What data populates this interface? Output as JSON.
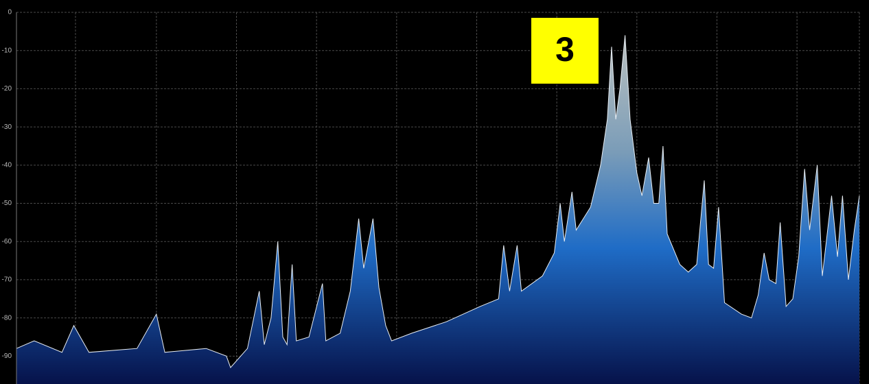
{
  "chart_data": {
    "type": "area",
    "annotation": "3",
    "x": [
      0,
      2.1,
      5.4,
      6.8,
      8.6,
      14.3,
      16.6,
      17.6,
      22.5,
      24.9,
      25.4,
      27.4,
      28.8,
      29.4,
      30.2,
      31.0,
      31.6,
      32.1,
      32.7,
      33.2,
      34.7,
      36.3,
      36.7,
      38.4,
      39.6,
      40.6,
      41.2,
      42.3,
      43.0,
      43.8,
      44.5,
      46.9,
      51.0,
      55.0,
      57.2,
      57.8,
      58.5,
      59.4,
      59.9,
      62.4,
      63.8,
      64.5,
      65.0,
      65.9,
      66.4,
      68.1,
      69.3,
      70.1,
      70.6,
      71.1,
      71.6,
      72.2,
      72.8,
      73.6,
      74.2,
      75.0,
      75.6,
      76.2,
      76.7,
      77.2,
      78.7,
      79.7,
      80.7,
      81.6,
      82.1,
      82.7,
      83.3,
      84.0,
      86.0,
      87.2,
      88.0,
      88.7,
      89.3,
      90.1,
      90.6,
      91.3,
      92.1,
      92.8,
      93.5,
      94.1,
      95.0,
      95.6,
      96.7,
      97.4,
      98.0,
      98.7,
      99.4,
      100
    ],
    "values": [
      -88,
      -86,
      -89,
      -82,
      -89,
      -88,
      -79,
      -89,
      -88,
      -90,
      -93,
      -88,
      -73,
      -87,
      -80,
      -60,
      -85,
      -87,
      -66,
      -86,
      -85,
      -71,
      -86,
      -84,
      -73,
      -54,
      -67,
      -54,
      -72,
      -82,
      -86,
      -84,
      -81,
      -77,
      -75,
      -61,
      -73,
      -61,
      -73,
      -69,
      -63,
      -50,
      -60,
      -47,
      -57,
      -51,
      -40,
      -28,
      -9,
      -28,
      -20,
      -6,
      -28,
      -42,
      -48,
      -38,
      -50,
      -50,
      -35,
      -58,
      -66,
      -68,
      -66,
      -44,
      -66,
      -67,
      -51,
      -76,
      -79,
      -80,
      -74,
      -63,
      -70,
      -71,
      -55,
      -77,
      -75,
      -64,
      -41,
      -57,
      -40,
      -69,
      -48,
      -64,
      -48,
      -70,
      -57,
      -48
    ],
    "xlim": [
      0,
      100
    ],
    "xticks": [
      7.0,
      16.6,
      26.1,
      35.6,
      45.1,
      54.6,
      64.1,
      73.6,
      83.1,
      92.6
    ],
    "ylim": [
      -97.3,
      0
    ],
    "yticks": [
      0,
      -10,
      -20,
      -30,
      -40,
      -50,
      -60,
      -70,
      -80,
      -90
    ],
    "grid": true
  }
}
